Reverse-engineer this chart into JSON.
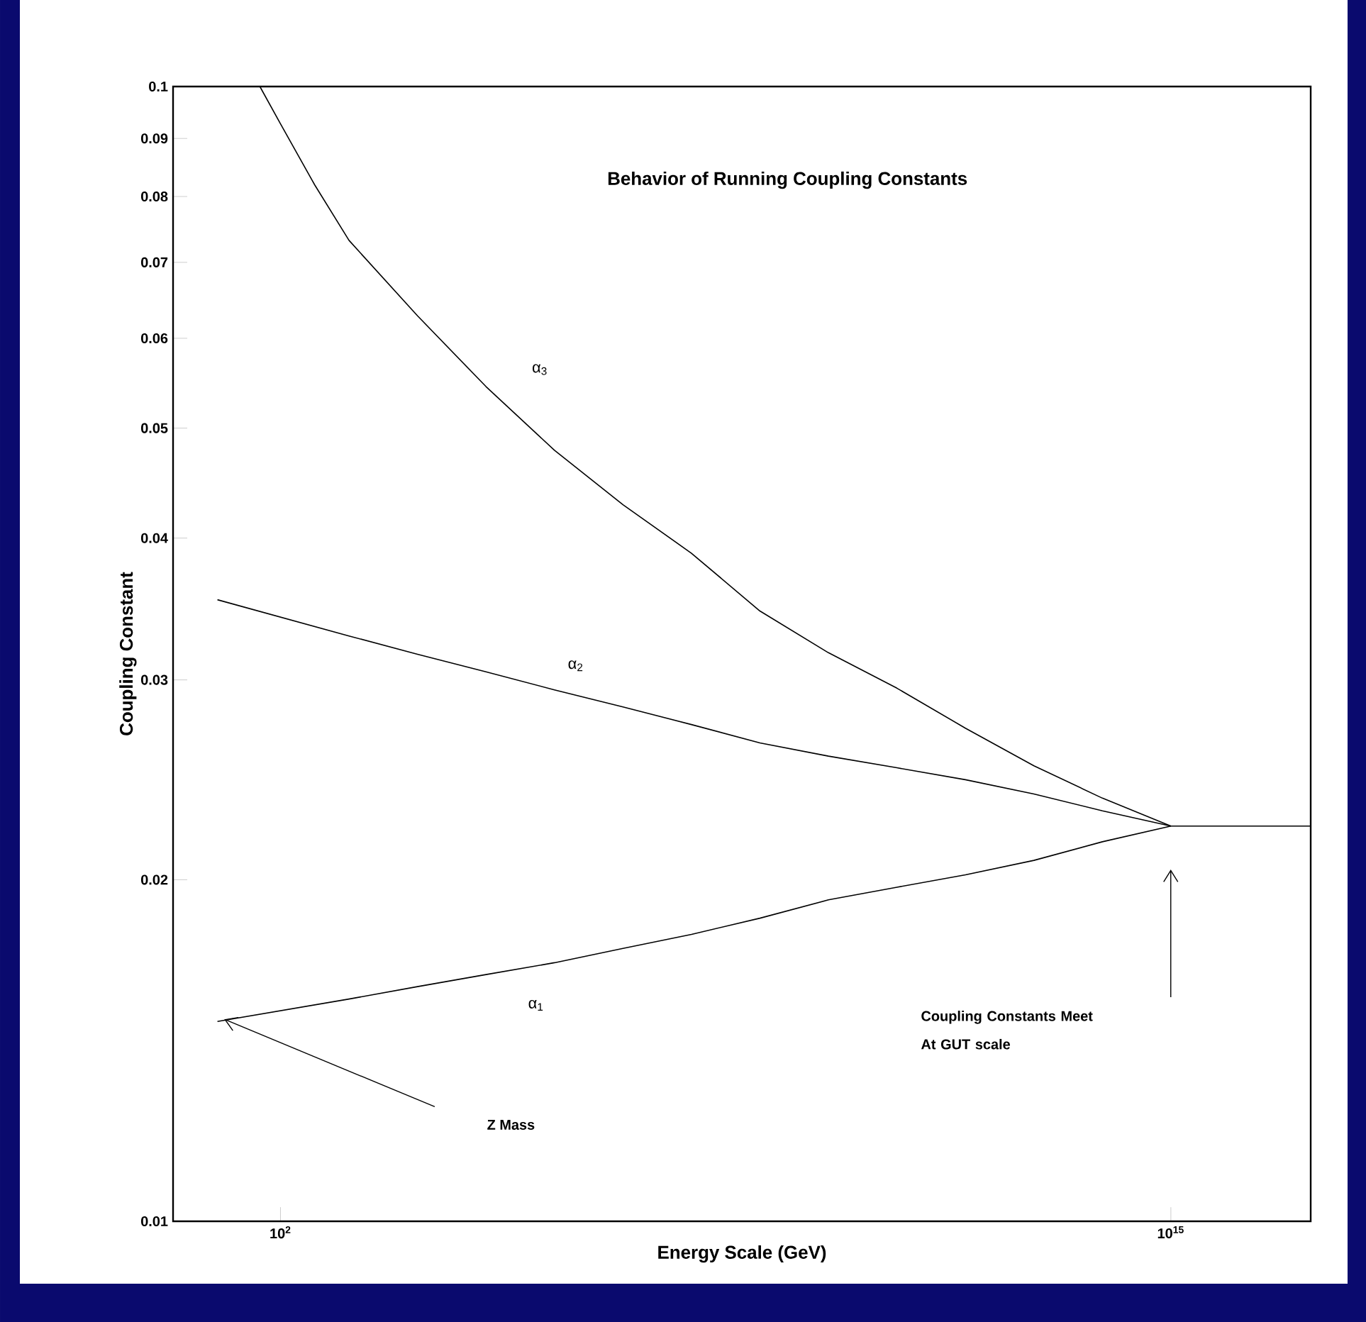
{
  "chart_data": {
    "type": "line",
    "title": "Behavior of Running Coupling Constants",
    "xlabel": "Energy Scale (GeV)",
    "ylabel": "Coupling Constant",
    "log": "xy",
    "marker": "none",
    "xlim": [
      2.7,
      1.1e+17
    ],
    "ylim": [
      0.01,
      0.1
    ],
    "xticks": [
      {
        "value": 100,
        "label": "10$^{2}$"
      },
      {
        "value": 1000000000000000.0,
        "label": "10$^{15}$"
      }
    ],
    "yticks": [
      0.01,
      0.02,
      0.03,
      0.04,
      0.05,
      0.06,
      0.07,
      0.08,
      0.09,
      0.1
    ],
    "series": [
      {
        "name": "α$_{1}$",
        "color": "#000000",
        "x": [
          12,
          1000.0,
          10000.0,
          100000.0,
          1000000.0,
          10000000.0,
          100000000.0,
          1000000000.0,
          10000000000.0,
          100000000000.0,
          1000000000000.0,
          10000000000000.0,
          100000000000000.0,
          1000000000000000.0,
          1.1e+17
        ],
        "values": [
          0.015,
          0.0157,
          0.0161,
          0.0165,
          0.0169,
          0.0174,
          0.0179,
          0.0185,
          0.0192,
          0.0197,
          0.0202,
          0.0208,
          0.0216,
          0.0223,
          0.0223
        ]
      },
      {
        "name": "α$_{2}$",
        "color": "#000000",
        "x": [
          12,
          1000.0,
          10000.0,
          100000.0,
          1000000.0,
          10000000.0,
          100000000.0,
          1000000000.0,
          10000000000.0,
          100000000000.0,
          1000000000000.0,
          10000000000000.0,
          100000000000000.0,
          1000000000000000.0
        ],
        "values": [
          0.0353,
          0.0328,
          0.0316,
          0.0305,
          0.0294,
          0.0284,
          0.0274,
          0.0264,
          0.0257,
          0.0251,
          0.0245,
          0.0238,
          0.023,
          0.0223
        ]
      },
      {
        "name": "α$_{3}$",
        "color": "#000000",
        "x": [
          50,
          100,
          316,
          1000.0,
          10000.0,
          100000.0,
          1000000.0,
          10000000.0,
          100000000.0,
          1000000000.0,
          10000000000.0,
          100000000000.0,
          1000000000000.0,
          10000000000000.0,
          100000000000000.0,
          1000000000000000.0
        ],
        "values": [
          0.1,
          0.0927,
          0.0819,
          0.0732,
          0.0628,
          0.0544,
          0.0478,
          0.0428,
          0.0388,
          0.0345,
          0.0317,
          0.0295,
          0.0272,
          0.0252,
          0.0236,
          0.0223
        ]
      }
    ],
    "annotations": [
      "Z Mass",
      "Coupling Constants Meet At GUT scale"
    ]
  }
}
